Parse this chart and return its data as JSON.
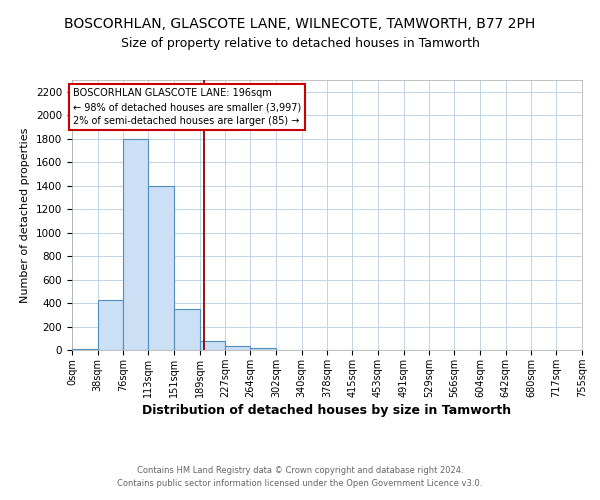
{
  "title": "BOSCORHLAN, GLASCOTE LANE, WILNECOTE, TAMWORTH, B77 2PH",
  "subtitle": "Size of property relative to detached houses in Tamworth",
  "xlabel": "Distribution of detached houses by size in Tamworth",
  "ylabel": "Number of detached properties",
  "bin_edges": [
    0,
    38,
    76,
    113,
    151,
    189,
    227,
    264,
    302,
    340,
    378,
    415,
    453,
    491,
    529,
    566,
    604,
    642,
    680,
    717,
    755
  ],
  "bar_heights": [
    10,
    425,
    1800,
    1400,
    350,
    80,
    30,
    20,
    0,
    0,
    0,
    0,
    0,
    0,
    0,
    0,
    0,
    0,
    0,
    0
  ],
  "bar_color": "#cce0f5",
  "bar_edge_color": "#4f8fc0",
  "property_line_x": 196,
  "property_line_color": "#8b0000",
  "ylim": [
    0,
    2300
  ],
  "yticks": [
    0,
    200,
    400,
    600,
    800,
    1000,
    1200,
    1400,
    1600,
    1800,
    2000,
    2200
  ],
  "annotation_title": "BOSCORHLAN GLASCOTE LANE: 196sqm",
  "annotation_line1": "← 98% of detached houses are smaller (3,997)",
  "annotation_line2": "2% of semi-detached houses are larger (85) →",
  "annotation_box_color": "#ffffff",
  "annotation_border_color": "#cc0000",
  "footnote1": "Contains HM Land Registry data © Crown copyright and database right 2024.",
  "footnote2": "Contains public sector information licensed under the Open Government Licence v3.0.",
  "background_color": "#ffffff",
  "grid_color": "#b8cfe0",
  "title_fontsize": 10,
  "subtitle_fontsize": 9,
  "xlabel_fontsize": 9,
  "ylabel_fontsize": 8,
  "annot_fontsize": 7,
  "tick_fontsize": 7,
  "ytick_fontsize": 7.5,
  "footnote_fontsize": 6,
  "tick_labels": [
    "0sqm",
    "38sqm",
    "76sqm",
    "113sqm",
    "151sqm",
    "189sqm",
    "227sqm",
    "264sqm",
    "302sqm",
    "340sqm",
    "378sqm",
    "415sqm",
    "453sqm",
    "491sqm",
    "529sqm",
    "566sqm",
    "604sqm",
    "642sqm",
    "680sqm",
    "717sqm",
    "755sqm"
  ]
}
